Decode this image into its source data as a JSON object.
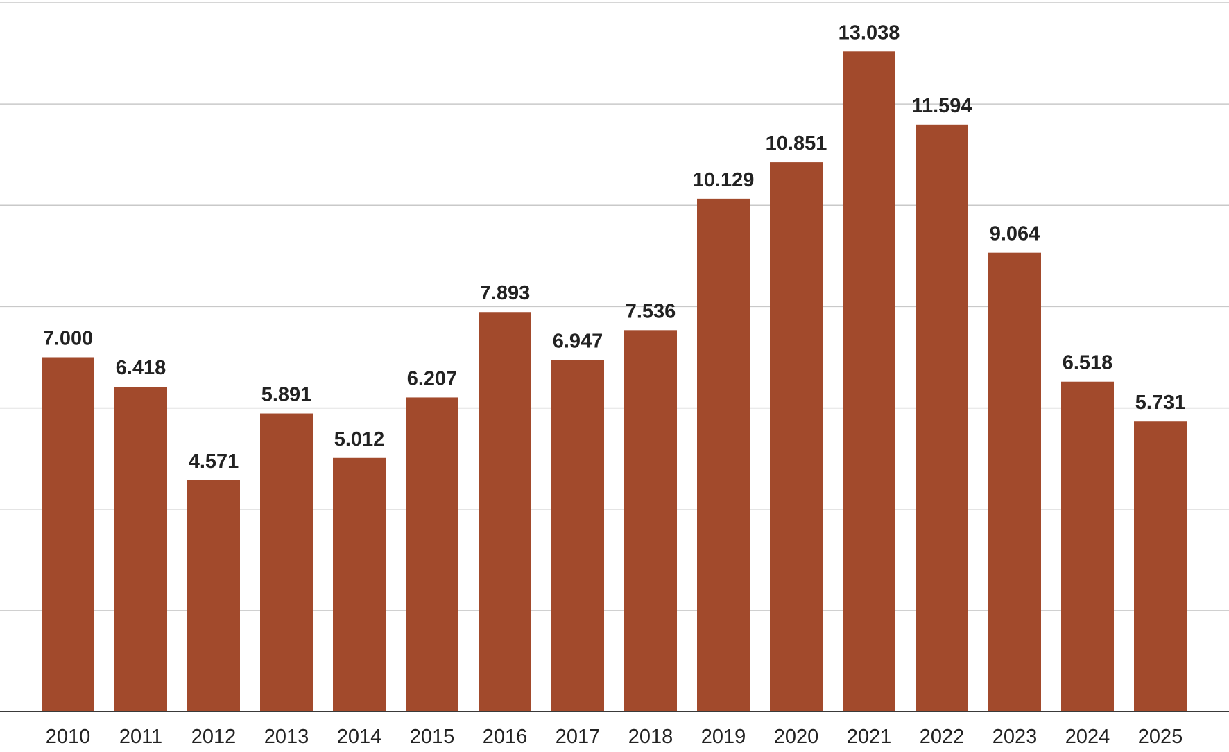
{
  "chart_data": {
    "type": "bar",
    "categories": [
      "2010",
      "2011",
      "2012",
      "2013",
      "2014",
      "2015",
      "2016",
      "2017",
      "2018",
      "2019",
      "2020",
      "2021",
      "2022",
      "2023",
      "2024",
      "2025"
    ],
    "values": [
      7000,
      6418,
      4571,
      5891,
      5012,
      6207,
      7893,
      6947,
      7536,
      10129,
      10851,
      13038,
      11594,
      9064,
      6518,
      5731
    ],
    "value_labels": [
      "7.000",
      "6.418",
      "4.571",
      "5.891",
      "5.012",
      "6.207",
      "7.893",
      "6.947",
      "7.536",
      "10.129",
      "10.851",
      "13.038",
      "11.594",
      "9.064",
      "6.518",
      "5.731"
    ],
    "ylim": [
      0,
      14000
    ],
    "gridlines": [
      0,
      2000,
      4000,
      6000,
      8000,
      10000,
      12000,
      14000
    ],
    "grid": true,
    "legend": "none",
    "bar_color": "#a24a2c",
    "grid_color": "#c9c9c9",
    "text_color": "#222222"
  }
}
